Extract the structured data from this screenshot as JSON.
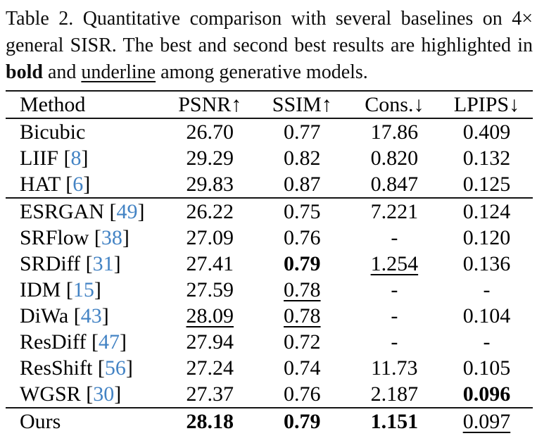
{
  "colors": {
    "citation_blue": "#4383c4",
    "rule": "#141414",
    "text": "#000000",
    "background": "#ffffff"
  },
  "caption": {
    "line1": "Table 2.  Quantitative comparison with several baselines on 4×",
    "line2": "general SISR. The best and second best results are highlighted in",
    "line3_bold": "bold",
    "line3_mid": " and ",
    "line3_underline": "underline",
    "line3_tail": " among generative models."
  },
  "table": {
    "headers": [
      "Method",
      "PSNR↑",
      "SSIM↑",
      "Cons.↓",
      "LPIPS↓"
    ],
    "rows": [
      {
        "method": "Bicubic",
        "cite": "",
        "group_start": false,
        "values": [
          {
            "text": "26.70",
            "style": ""
          },
          {
            "text": "0.77",
            "style": ""
          },
          {
            "text": "17.86",
            "style": ""
          },
          {
            "text": "0.409",
            "style": ""
          }
        ]
      },
      {
        "method": "LIIF",
        "cite": "8",
        "group_start": false,
        "values": [
          {
            "text": "29.29",
            "style": ""
          },
          {
            "text": "0.82",
            "style": ""
          },
          {
            "text": "0.820",
            "style": ""
          },
          {
            "text": "0.132",
            "style": ""
          }
        ]
      },
      {
        "method": "HAT",
        "cite": "6",
        "group_start": false,
        "values": [
          {
            "text": "29.83",
            "style": ""
          },
          {
            "text": "0.87",
            "style": ""
          },
          {
            "text": "0.847",
            "style": ""
          },
          {
            "text": "0.125",
            "style": ""
          }
        ]
      },
      {
        "method": "ESRGAN",
        "cite": "49",
        "group_start": true,
        "values": [
          {
            "text": "26.22",
            "style": ""
          },
          {
            "text": "0.75",
            "style": ""
          },
          {
            "text": "7.221",
            "style": ""
          },
          {
            "text": "0.124",
            "style": ""
          }
        ]
      },
      {
        "method": "SRFlow",
        "cite": "38",
        "group_start": false,
        "values": [
          {
            "text": "27.09",
            "style": ""
          },
          {
            "text": "0.76",
            "style": ""
          },
          {
            "text": "-",
            "style": ""
          },
          {
            "text": "0.120",
            "style": ""
          }
        ]
      },
      {
        "method": "SRDiff",
        "cite": "31",
        "group_start": false,
        "values": [
          {
            "text": "27.41",
            "style": ""
          },
          {
            "text": "0.79",
            "style": "bold"
          },
          {
            "text": "1.254",
            "style": "underline"
          },
          {
            "text": "0.136",
            "style": ""
          }
        ]
      },
      {
        "method": "IDM",
        "cite": "15",
        "group_start": false,
        "values": [
          {
            "text": "27.59",
            "style": ""
          },
          {
            "text": "0.78",
            "style": "underline"
          },
          {
            "text": "-",
            "style": ""
          },
          {
            "text": "-",
            "style": ""
          }
        ]
      },
      {
        "method": "DiWa",
        "cite": "43",
        "group_start": false,
        "values": [
          {
            "text": "28.09",
            "style": "underline"
          },
          {
            "text": "0.78",
            "style": "underline"
          },
          {
            "text": "-",
            "style": ""
          },
          {
            "text": "0.104",
            "style": ""
          }
        ]
      },
      {
        "method": "ResDiff",
        "cite": "47",
        "group_start": false,
        "values": [
          {
            "text": "27.94",
            "style": ""
          },
          {
            "text": "0.72",
            "style": ""
          },
          {
            "text": "-",
            "style": ""
          },
          {
            "text": "-",
            "style": ""
          }
        ]
      },
      {
        "method": "ResShift",
        "cite": "56",
        "group_start": false,
        "values": [
          {
            "text": "27.24",
            "style": ""
          },
          {
            "text": "0.74",
            "style": ""
          },
          {
            "text": "11.73",
            "style": ""
          },
          {
            "text": "0.105",
            "style": ""
          }
        ]
      },
      {
        "method": "WGSR",
        "cite": "30",
        "group_start": false,
        "values": [
          {
            "text": "27.37",
            "style": ""
          },
          {
            "text": "0.76",
            "style": ""
          },
          {
            "text": "2.187",
            "style": ""
          },
          {
            "text": "0.096",
            "style": "bold"
          }
        ]
      },
      {
        "method": "Ours",
        "cite": "",
        "group_start": true,
        "values": [
          {
            "text": "28.18",
            "style": "bold"
          },
          {
            "text": "0.79",
            "style": "bold"
          },
          {
            "text": "1.151",
            "style": "bold"
          },
          {
            "text": "0.097",
            "style": "underline"
          }
        ]
      }
    ]
  }
}
